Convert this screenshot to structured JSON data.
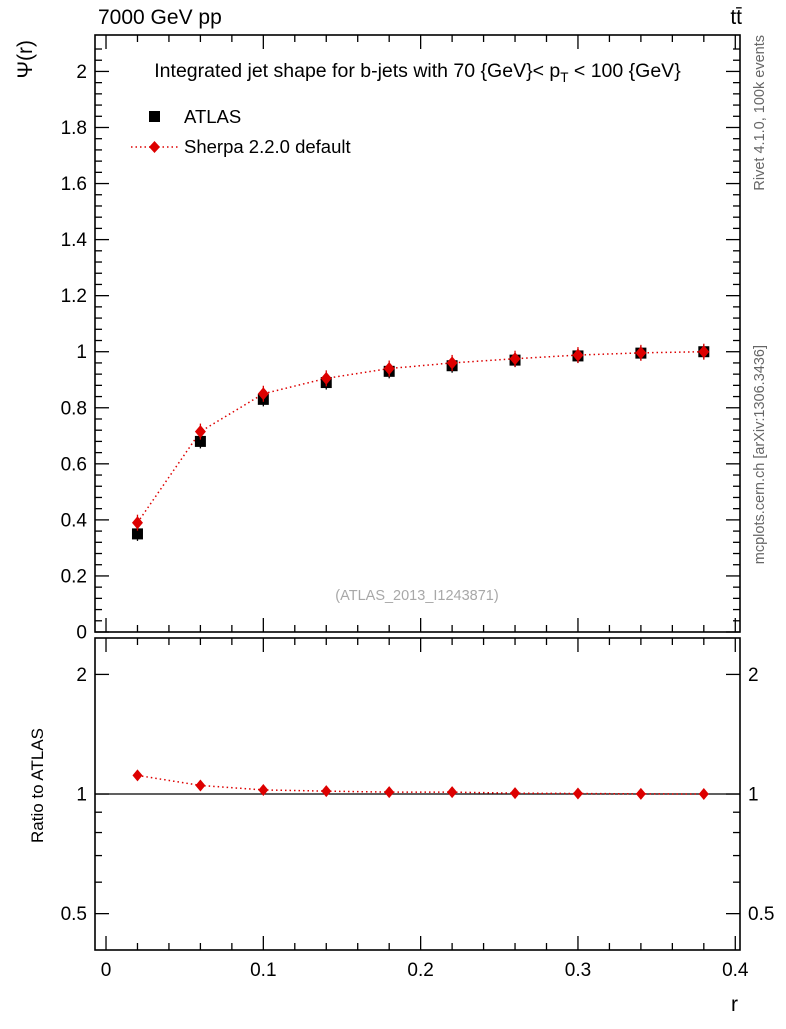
{
  "header": {
    "left": "7000 GeV pp",
    "right": "tt̄"
  },
  "labels": {
    "y_main": "Ψ(r)",
    "y_ratio": "Ratio to ATLAS",
    "x": "r",
    "watermark": "(ATLAS_2013_I1243871)",
    "side_top": "Rivet 4.1.0, 100k events",
    "side_bottom": "mcplots.cern.ch [arXiv:1306.3436]"
  },
  "title": {
    "full": "Integrated jet shape for b-jets with 70 {GeV}< p_T < 100 {GeV}",
    "pre": "Integrated jet shape for b-jets with 70 {GeV}< p",
    "sub": "T",
    "post": " < 100 {GeV}"
  },
  "legend": [
    {
      "label": "ATLAS",
      "marker": "square",
      "color": "#000000"
    },
    {
      "label": "Sherpa 2.2.0 default",
      "marker": "diamond",
      "color": "#dd0000",
      "line": "dotted"
    }
  ],
  "chart_data": [
    {
      "type": "scatter",
      "title": "Integrated jet shape for b-jets with 70 {GeV}< p_T < 100 {GeV}",
      "xlabel": "r",
      "ylabel": "Ψ(r)",
      "xlim": [
        -0.007,
        0.403
      ],
      "ylim": [
        0,
        2.13
      ],
      "xticks": [
        0,
        0.1,
        0.2,
        0.3,
        0.4
      ],
      "xminor_step": 0.02,
      "yticks": [
        0,
        0.2,
        0.4,
        0.6,
        0.8,
        1,
        1.2,
        1.4,
        1.6,
        1.8,
        2
      ],
      "yminor_step": 0.04,
      "grid": false,
      "legend_position": "top-left",
      "x": [
        0.02,
        0.06,
        0.1,
        0.14,
        0.18,
        0.22,
        0.26,
        0.3,
        0.34,
        0.38
      ],
      "series": [
        {
          "name": "ATLAS",
          "marker": "square",
          "color": "#000000",
          "values": [
            0.35,
            0.68,
            0.83,
            0.89,
            0.93,
            0.95,
            0.97,
            0.985,
            0.995,
            1.0
          ]
        },
        {
          "name": "Sherpa 2.2.0 default",
          "marker": "diamond",
          "color": "#dd0000",
          "line": "dotted",
          "values": [
            0.39,
            0.715,
            0.85,
            0.905,
            0.94,
            0.96,
            0.975,
            0.988,
            0.996,
            1.0
          ]
        }
      ]
    },
    {
      "type": "scatter",
      "ylabel": "Ratio to ATLAS",
      "yscale": "log",
      "ylim": [
        0.405,
        2.47
      ],
      "yticks": [
        0.5,
        1,
        2
      ],
      "yminors": [
        0.4,
        0.6,
        0.7,
        0.8,
        0.9
      ],
      "refline": 1,
      "x": [
        0.02,
        0.06,
        0.1,
        0.14,
        0.18,
        0.22,
        0.26,
        0.3,
        0.34,
        0.38
      ],
      "series": [
        {
          "name": "Sherpa 2.2.0 default / ATLAS",
          "marker": "diamond",
          "color": "#dd0000",
          "line": "dotted",
          "values": [
            1.114,
            1.051,
            1.024,
            1.017,
            1.011,
            1.011,
            1.005,
            1.003,
            1.001,
            1.0
          ]
        }
      ]
    }
  ]
}
